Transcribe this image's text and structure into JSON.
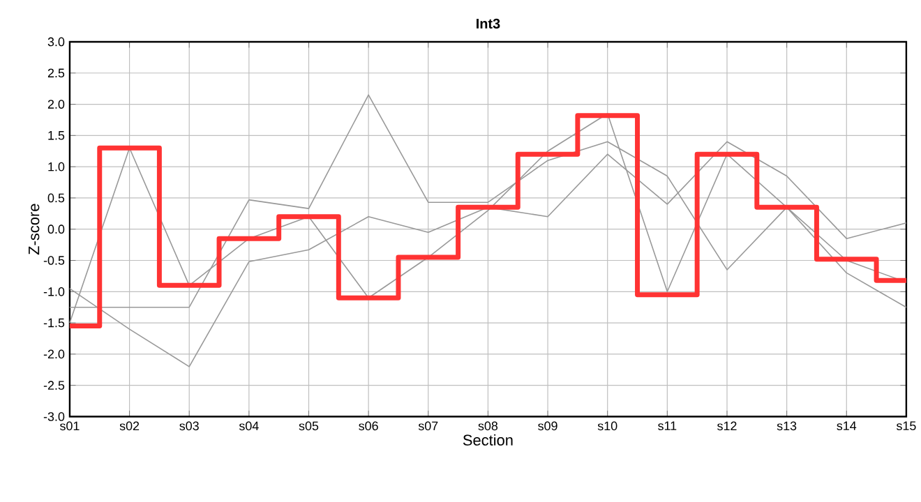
{
  "chart_data": {
    "type": "line",
    "title": "Int3",
    "xlabel": "Section",
    "ylabel": "Z-score",
    "categories": [
      "s01",
      "s02",
      "s03",
      "s04",
      "s05",
      "s06",
      "s07",
      "s08",
      "s09",
      "s10",
      "s11",
      "s12",
      "s13",
      "s14",
      "s15"
    ],
    "ylim": [
      -3,
      3
    ],
    "yticks": [
      {
        "value": -3,
        "label": "-3.0"
      },
      {
        "value": -2.5,
        "label": "-2.5"
      },
      {
        "value": -2,
        "label": "-2.0"
      },
      {
        "value": -1.5,
        "label": "-1.5"
      },
      {
        "value": -1,
        "label": "-1.0"
      },
      {
        "value": -0.5,
        "label": "-0.5"
      },
      {
        "value": 0,
        "label": "0.0"
      },
      {
        "value": 0.5,
        "label": "0.5"
      },
      {
        "value": 1,
        "label": "1.0"
      },
      {
        "value": 1.5,
        "label": "1.5"
      },
      {
        "value": 2,
        "label": "2.0"
      },
      {
        "value": 2.5,
        "label": "2.5"
      },
      {
        "value": 3,
        "label": "3.0"
      }
    ],
    "grid": true,
    "series": [
      {
        "color": "#999999",
        "values": [
          -1.25,
          -1.25,
          -1.25,
          0.47,
          0.33,
          2.15,
          0.43,
          0.43,
          1.1,
          1.4,
          0.85,
          -0.65,
          0.35,
          -0.7,
          -1.25
        ]
      },
      {
        "color": "#999999",
        "values": [
          -0.95,
          -1.6,
          -2.2,
          -0.52,
          -0.33,
          0.2,
          -0.05,
          0.35,
          0.2,
          1.2,
          0.4,
          1.4,
          0.85,
          -0.15,
          0.1
        ]
      },
      {
        "color": "#999999",
        "values": [
          -1.5,
          1.3,
          -0.9,
          -0.15,
          0.2,
          -1.1,
          -0.45,
          0.3,
          1.25,
          1.85,
          -1.0,
          1.2,
          0.35,
          -0.5,
          -0.85
        ]
      },
      {
        "type": "step",
        "color": "#ff3333",
        "values": [
          -1.55,
          1.3,
          -0.9,
          -0.15,
          0.2,
          -1.1,
          -0.45,
          0.35,
          1.2,
          1.82,
          -1.05,
          1.2,
          0.35,
          -0.48,
          -0.82
        ]
      }
    ]
  }
}
